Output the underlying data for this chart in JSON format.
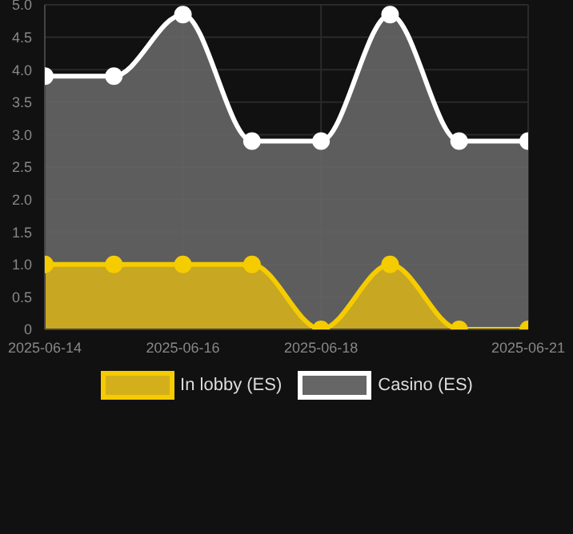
{
  "chart_data": {
    "type": "area",
    "x": [
      "2025-06-14",
      "2025-06-15",
      "2025-06-16",
      "2025-06-17",
      "2025-06-18",
      "2025-06-19",
      "2025-06-20",
      "2025-06-21"
    ],
    "series": [
      {
        "name": "In lobby (ES)",
        "color": "#f5cc00",
        "values": [
          1,
          1,
          1,
          1,
          0,
          1,
          0,
          0
        ]
      },
      {
        "name": "Casino (ES)",
        "color": "#ffffff",
        "values": [
          3.9,
          3.9,
          4.85,
          2.9,
          2.9,
          4.85,
          2.9,
          2.9
        ]
      }
    ],
    "ylim": [
      0,
      5
    ],
    "yticks": [
      {
        "value": 0,
        "label": "0"
      },
      0.5,
      {
        "value": 1,
        "label": "1.0"
      },
      1.5,
      {
        "value": 2,
        "label": "2.0"
      },
      2.5,
      {
        "value": 3,
        "label": "3.0"
      },
      3.5,
      {
        "value": 4,
        "label": "4.0"
      },
      4.5,
      {
        "value": 5,
        "label": "5.0"
      }
    ],
    "xlim": [
      "2025-06-14",
      "2025-06-21"
    ],
    "xticks": [
      "2025-06-14",
      "2025-06-16",
      "2025-06-18",
      "2025-06-21"
    ],
    "grid": true,
    "legend": "bottom",
    "marker": "circle"
  }
}
